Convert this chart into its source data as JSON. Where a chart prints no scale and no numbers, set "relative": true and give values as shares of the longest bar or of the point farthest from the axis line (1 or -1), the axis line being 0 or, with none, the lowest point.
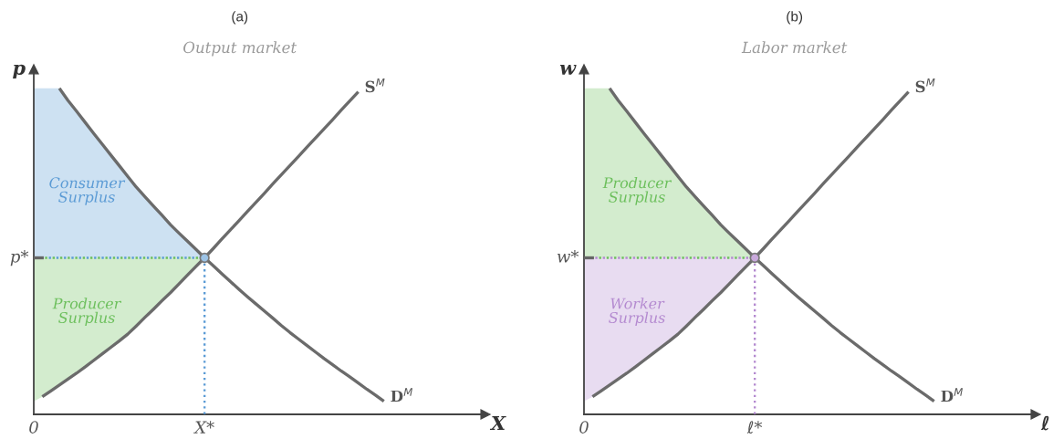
{
  "chart_data": [
    {
      "type": "line",
      "title": "(a)",
      "subtitle": "Output market",
      "xlabel": "X",
      "ylabel": "p",
      "relative": true,
      "categories": [
        "0",
        null,
        null,
        null,
        null,
        null,
        null,
        null,
        null,
        null,
        null,
        null,
        null,
        null,
        null,
        null,
        null,
        null,
        null,
        null,
        "X*",
        null,
        null,
        null,
        null,
        null,
        null,
        null,
        null,
        null,
        null,
        null,
        null,
        null,
        null,
        null,
        null,
        null,
        null,
        null,
        null,
        null
      ],
      "annotations": [
        {
          "text": "p*",
          "x": "0",
          "y": 0.48
        }
      ],
      "series": [
        {
          "name": "Consumer Surplus",
          "color": "#5b9bd5",
          "line_style": "dotted",
          "values": [
            0.48,
            0.48,
            0.48,
            0.48,
            0.48,
            0.48,
            0.48,
            0.48,
            0.48,
            0.48,
            0.48,
            0.48,
            0.48,
            0.48,
            0.48,
            0.48,
            0.48,
            0.48,
            0.48,
            0.48,
            0.48,
            null,
            null,
            null,
            null,
            null,
            null,
            null,
            null,
            null,
            null,
            null,
            null,
            null,
            null,
            null,
            null,
            null,
            null,
            null,
            null,
            null
          ],
          "lower": [
            0.48,
            0.48,
            0.48,
            0.48,
            0.48,
            0.48,
            0.48,
            0.48,
            0.48,
            0.48,
            0.48,
            0.48,
            0.48,
            0.48,
            0.48,
            0.48,
            0.48,
            0.48,
            0.48,
            0.48,
            0.48,
            null,
            null,
            null,
            null,
            null,
            null,
            null,
            null,
            null,
            null,
            null,
            null,
            null,
            null,
            null,
            null,
            null,
            null,
            null,
            null,
            null
          ],
          "upper": [
            1.0,
            1.0,
            1.0,
            1.0,
            0.963,
            0.93,
            0.896,
            0.862,
            0.829,
            0.796,
            0.763,
            0.73,
            0.697,
            0.668,
            0.639,
            0.611,
            0.582,
            0.556,
            0.531,
            0.506,
            0.48,
            null,
            null,
            null,
            null,
            null,
            null,
            null,
            null,
            null,
            null,
            null,
            null,
            null,
            null,
            null,
            null,
            null,
            null,
            null,
            null,
            null
          ]
        },
        {
          "name": "Producer Surplus",
          "color": "#6cbf5c",
          "line_style": "dotted",
          "values": [
            0.48,
            0.48,
            0.48,
            0.48,
            0.48,
            0.48,
            0.48,
            0.48,
            0.48,
            0.48,
            0.48,
            0.48,
            0.48,
            0.48,
            0.48,
            0.48,
            0.48,
            0.48,
            0.48,
            0.48,
            0.48,
            null,
            null,
            null,
            null,
            null,
            null,
            null,
            null,
            null,
            null,
            null,
            null,
            null,
            null,
            null,
            null,
            null,
            null,
            null,
            null,
            null
          ],
          "lower": [
            0.04,
            0.054,
            0.072,
            0.09,
            0.108,
            0.126,
            0.145,
            0.165,
            0.185,
            0.205,
            0.225,
            0.246,
            0.271,
            0.297,
            0.322,
            0.348,
            0.373,
            0.4,
            0.427,
            0.454,
            0.48,
            null,
            null,
            null,
            null,
            null,
            null,
            null,
            null,
            null,
            null,
            null,
            null,
            null,
            null,
            null,
            null,
            null,
            null,
            null,
            null,
            null
          ],
          "upper": [
            0.48,
            0.48,
            0.48,
            0.48,
            0.48,
            0.48,
            0.48,
            0.48,
            0.48,
            0.48,
            0.48,
            0.48,
            0.48,
            0.48,
            0.48,
            0.48,
            0.48,
            0.48,
            0.48,
            0.48,
            0.48,
            null,
            null,
            null,
            null,
            null,
            null,
            null,
            null,
            null,
            null,
            null,
            null,
            null,
            null,
            null,
            null,
            null,
            null,
            null,
            null,
            null
          ]
        },
        {
          "line_style": "dotted",
          "color": "#5b9bd5",
          "x": [
            "X*",
            "X*"
          ],
          "values": [
            0.48,
            0
          ]
        },
        {
          "name": "D$^{M}$",
          "color": "#6b6b6b",
          "values": [
            null,
            null,
            null,
            1.0,
            0.963,
            0.93,
            0.896,
            0.862,
            0.829,
            0.796,
            0.763,
            0.73,
            0.697,
            0.668,
            0.639,
            0.611,
            0.582,
            0.556,
            0.531,
            0.506,
            0.48,
            0.456,
            0.432,
            0.408,
            0.384,
            0.361,
            0.339,
            0.317,
            0.295,
            0.272,
            0.251,
            0.231,
            0.211,
            0.191,
            0.171,
            0.152,
            0.133,
            0.115,
            0.096,
            0.077,
            0.059,
            0.04
          ]
        },
        {
          "name": "S$^{M}$",
          "color": "#6b6b6b",
          "values": [
            null,
            0.054,
            0.072,
            0.09,
            0.108,
            0.126,
            0.145,
            0.165,
            0.185,
            0.205,
            0.225,
            0.246,
            0.271,
            0.297,
            0.322,
            0.348,
            0.373,
            0.4,
            0.427,
            0.454,
            0.48,
            0.508,
            0.537,
            0.565,
            0.593,
            0.622,
            0.65,
            0.678,
            0.707,
            0.735,
            0.763,
            0.791,
            0.82,
            0.848,
            0.876,
            0.904,
            0.933,
            0.961,
            0.989,
            null,
            null,
            null
          ]
        },
        {
          "type": "scatter",
          "marker": "circle",
          "color": "#9cc3e6",
          "x": [
            "X*"
          ],
          "values": [
            0.48
          ]
        }
      ]
    },
    {
      "type": "line",
      "title": "(b)",
      "subtitle": "Labor market",
      "xlabel": "ℓ",
      "ylabel": "w",
      "relative": true,
      "categories": [
        "0",
        null,
        null,
        null,
        null,
        null,
        null,
        null,
        null,
        null,
        null,
        null,
        null,
        null,
        null,
        null,
        null,
        null,
        null,
        null,
        "ℓ*",
        null,
        null,
        null,
        null,
        null,
        null,
        null,
        null,
        null,
        null,
        null,
        null,
        null,
        null,
        null,
        null,
        null,
        null,
        null,
        null,
        null
      ],
      "annotations": [
        {
          "text": "w*",
          "x": "0",
          "y": 0.48
        }
      ],
      "series": [
        {
          "name": "Producer Surplus",
          "color": "#6cbf5c",
          "line_style": "dotted",
          "values": [
            0.48,
            0.48,
            0.48,
            0.48,
            0.48,
            0.48,
            0.48,
            0.48,
            0.48,
            0.48,
            0.48,
            0.48,
            0.48,
            0.48,
            0.48,
            0.48,
            0.48,
            0.48,
            0.48,
            0.48,
            0.48,
            null,
            null,
            null,
            null,
            null,
            null,
            null,
            null,
            null,
            null,
            null,
            null,
            null,
            null,
            null,
            null,
            null,
            null,
            null,
            null,
            null
          ],
          "lower": [
            0.48,
            0.48,
            0.48,
            0.48,
            0.48,
            0.48,
            0.48,
            0.48,
            0.48,
            0.48,
            0.48,
            0.48,
            0.48,
            0.48,
            0.48,
            0.48,
            0.48,
            0.48,
            0.48,
            0.48,
            0.48,
            null,
            null,
            null,
            null,
            null,
            null,
            null,
            null,
            null,
            null,
            null,
            null,
            null,
            null,
            null,
            null,
            null,
            null,
            null,
            null,
            null
          ],
          "upper": [
            1.0,
            1.0,
            1.0,
            1.0,
            0.963,
            0.93,
            0.896,
            0.862,
            0.829,
            0.796,
            0.763,
            0.73,
            0.697,
            0.668,
            0.639,
            0.611,
            0.582,
            0.556,
            0.531,
            0.506,
            0.48,
            null,
            null,
            null,
            null,
            null,
            null,
            null,
            null,
            null,
            null,
            null,
            null,
            null,
            null,
            null,
            null,
            null,
            null,
            null,
            null,
            null
          ]
        },
        {
          "name": "Worker Surplus",
          "color": "#b48ad0",
          "line_style": "dotted",
          "values": [
            0.48,
            0.48,
            0.48,
            0.48,
            0.48,
            0.48,
            0.48,
            0.48,
            0.48,
            0.48,
            0.48,
            0.48,
            0.48,
            0.48,
            0.48,
            0.48,
            0.48,
            0.48,
            0.48,
            0.48,
            0.48,
            null,
            null,
            null,
            null,
            null,
            null,
            null,
            null,
            null,
            null,
            null,
            null,
            null,
            null,
            null,
            null,
            null,
            null,
            null,
            null,
            null
          ],
          "lower": [
            0.04,
            0.054,
            0.072,
            0.09,
            0.108,
            0.126,
            0.145,
            0.165,
            0.185,
            0.205,
            0.225,
            0.246,
            0.271,
            0.297,
            0.322,
            0.348,
            0.373,
            0.4,
            0.427,
            0.454,
            0.48,
            null,
            null,
            null,
            null,
            null,
            null,
            null,
            null,
            null,
            null,
            null,
            null,
            null,
            null,
            null,
            null,
            null,
            null,
            null,
            null,
            null
          ],
          "upper": [
            0.48,
            0.48,
            0.48,
            0.48,
            0.48,
            0.48,
            0.48,
            0.48,
            0.48,
            0.48,
            0.48,
            0.48,
            0.48,
            0.48,
            0.48,
            0.48,
            0.48,
            0.48,
            0.48,
            0.48,
            0.48,
            null,
            null,
            null,
            null,
            null,
            null,
            null,
            null,
            null,
            null,
            null,
            null,
            null,
            null,
            null,
            null,
            null,
            null,
            null,
            null,
            null
          ]
        },
        {
          "line_style": "dotted",
          "color": "#b48ad0",
          "x": [
            "ℓ*",
            "ℓ*"
          ],
          "values": [
            0.48,
            0
          ]
        },
        {
          "name": "D$^{M}$",
          "color": "#6b6b6b",
          "values": [
            null,
            null,
            null,
            1.0,
            0.963,
            0.93,
            0.896,
            0.862,
            0.829,
            0.796,
            0.763,
            0.73,
            0.697,
            0.668,
            0.639,
            0.611,
            0.582,
            0.556,
            0.531,
            0.506,
            0.48,
            0.456,
            0.432,
            0.408,
            0.384,
            0.361,
            0.339,
            0.317,
            0.295,
            0.272,
            0.251,
            0.231,
            0.211,
            0.191,
            0.171,
            0.152,
            0.133,
            0.115,
            0.096,
            0.077,
            0.059,
            0.04
          ]
        },
        {
          "name": "S$^{M}$",
          "color": "#6b6b6b",
          "values": [
            null,
            0.054,
            0.072,
            0.09,
            0.108,
            0.126,
            0.145,
            0.165,
            0.185,
            0.205,
            0.225,
            0.246,
            0.271,
            0.297,
            0.322,
            0.348,
            0.373,
            0.4,
            0.427,
            0.454,
            0.48,
            0.508,
            0.537,
            0.565,
            0.593,
            0.622,
            0.65,
            0.678,
            0.707,
            0.735,
            0.763,
            0.791,
            0.82,
            0.848,
            0.876,
            0.904,
            0.933,
            0.961,
            0.989,
            null,
            null,
            null
          ]
        },
        {
          "type": "scatter",
          "marker": "circle",
          "color": "#c9a9dc",
          "x": [
            "ℓ*"
          ],
          "values": [
            0.48
          ]
        }
      ]
    }
  ]
}
